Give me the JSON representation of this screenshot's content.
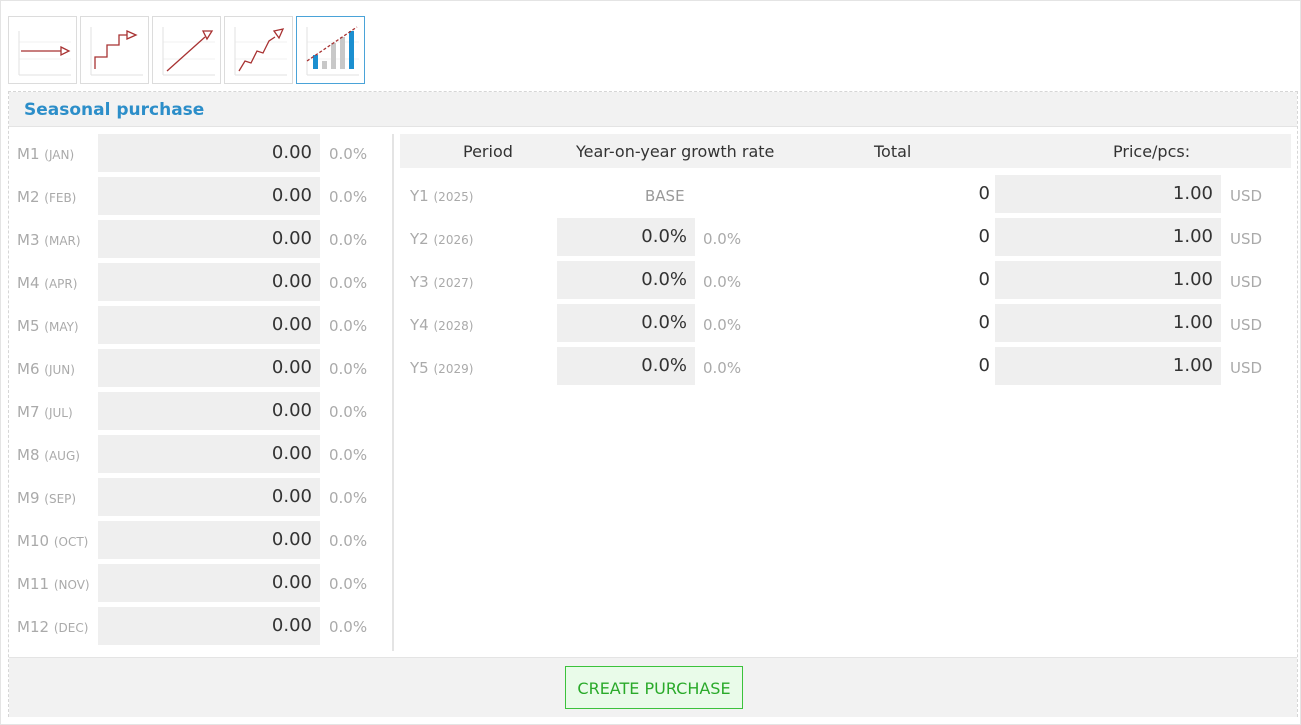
{
  "toolbar": {
    "icons": [
      {
        "name": "constant-trend-icon"
      },
      {
        "name": "step-trend-icon"
      },
      {
        "name": "linear-trend-icon"
      },
      {
        "name": "irregular-trend-icon"
      },
      {
        "name": "seasonal-trend-icon",
        "active": true
      }
    ]
  },
  "panel": {
    "title": "Seasonal purchase"
  },
  "months": [
    {
      "code": "M1",
      "abbr": "(JAN)",
      "value": "0.00",
      "pct": "0.0%"
    },
    {
      "code": "M2",
      "abbr": "(FEB)",
      "value": "0.00",
      "pct": "0.0%"
    },
    {
      "code": "M3",
      "abbr": "(MAR)",
      "value": "0.00",
      "pct": "0.0%"
    },
    {
      "code": "M4",
      "abbr": "(APR)",
      "value": "0.00",
      "pct": "0.0%"
    },
    {
      "code": "M5",
      "abbr": "(MAY)",
      "value": "0.00",
      "pct": "0.0%"
    },
    {
      "code": "M6",
      "abbr": "(JUN)",
      "value": "0.00",
      "pct": "0.0%"
    },
    {
      "code": "M7",
      "abbr": "(JUL)",
      "value": "0.00",
      "pct": "0.0%"
    },
    {
      "code": "M8",
      "abbr": "(AUG)",
      "value": "0.00",
      "pct": "0.0%"
    },
    {
      "code": "M9",
      "abbr": "(SEP)",
      "value": "0.00",
      "pct": "0.0%"
    },
    {
      "code": "M10",
      "abbr": "(OCT)",
      "value": "0.00",
      "pct": "0.0%"
    },
    {
      "code": "M11",
      "abbr": "(NOV)",
      "value": "0.00",
      "pct": "0.0%"
    },
    {
      "code": "M12",
      "abbr": "(DEC)",
      "value": "0.00",
      "pct": "0.0%"
    }
  ],
  "years_table": {
    "headers": {
      "period": "Period",
      "growth": "Year-on-year growth rate",
      "total": "Total",
      "price": "Price/pcs:"
    },
    "rows": [
      {
        "code": "Y1",
        "year": "(2025)",
        "base": "BASE",
        "growth": "",
        "growth_pct": "",
        "total": "0",
        "price": "1.00",
        "currency": "USD"
      },
      {
        "code": "Y2",
        "year": "(2026)",
        "base": "",
        "growth": "0.0%",
        "growth_pct": "0.0%",
        "total": "0",
        "price": "1.00",
        "currency": "USD"
      },
      {
        "code": "Y3",
        "year": "(2027)",
        "base": "",
        "growth": "0.0%",
        "growth_pct": "0.0%",
        "total": "0",
        "price": "1.00",
        "currency": "USD"
      },
      {
        "code": "Y4",
        "year": "(2028)",
        "base": "",
        "growth": "0.0%",
        "growth_pct": "0.0%",
        "total": "0",
        "price": "1.00",
        "currency": "USD"
      },
      {
        "code": "Y5",
        "year": "(2029)",
        "base": "",
        "growth": "0.0%",
        "growth_pct": "0.0%",
        "total": "0",
        "price": "1.00",
        "currency": "USD"
      }
    ]
  },
  "footer": {
    "create_label": "CREATE PURCHASE"
  },
  "colors": {
    "accent": "#2c8ec9",
    "trend_line": "#a83232",
    "bar_blue": "#1b8fd0",
    "bar_gray": "#c8c8c8",
    "create_green": "#2aaa2a"
  }
}
